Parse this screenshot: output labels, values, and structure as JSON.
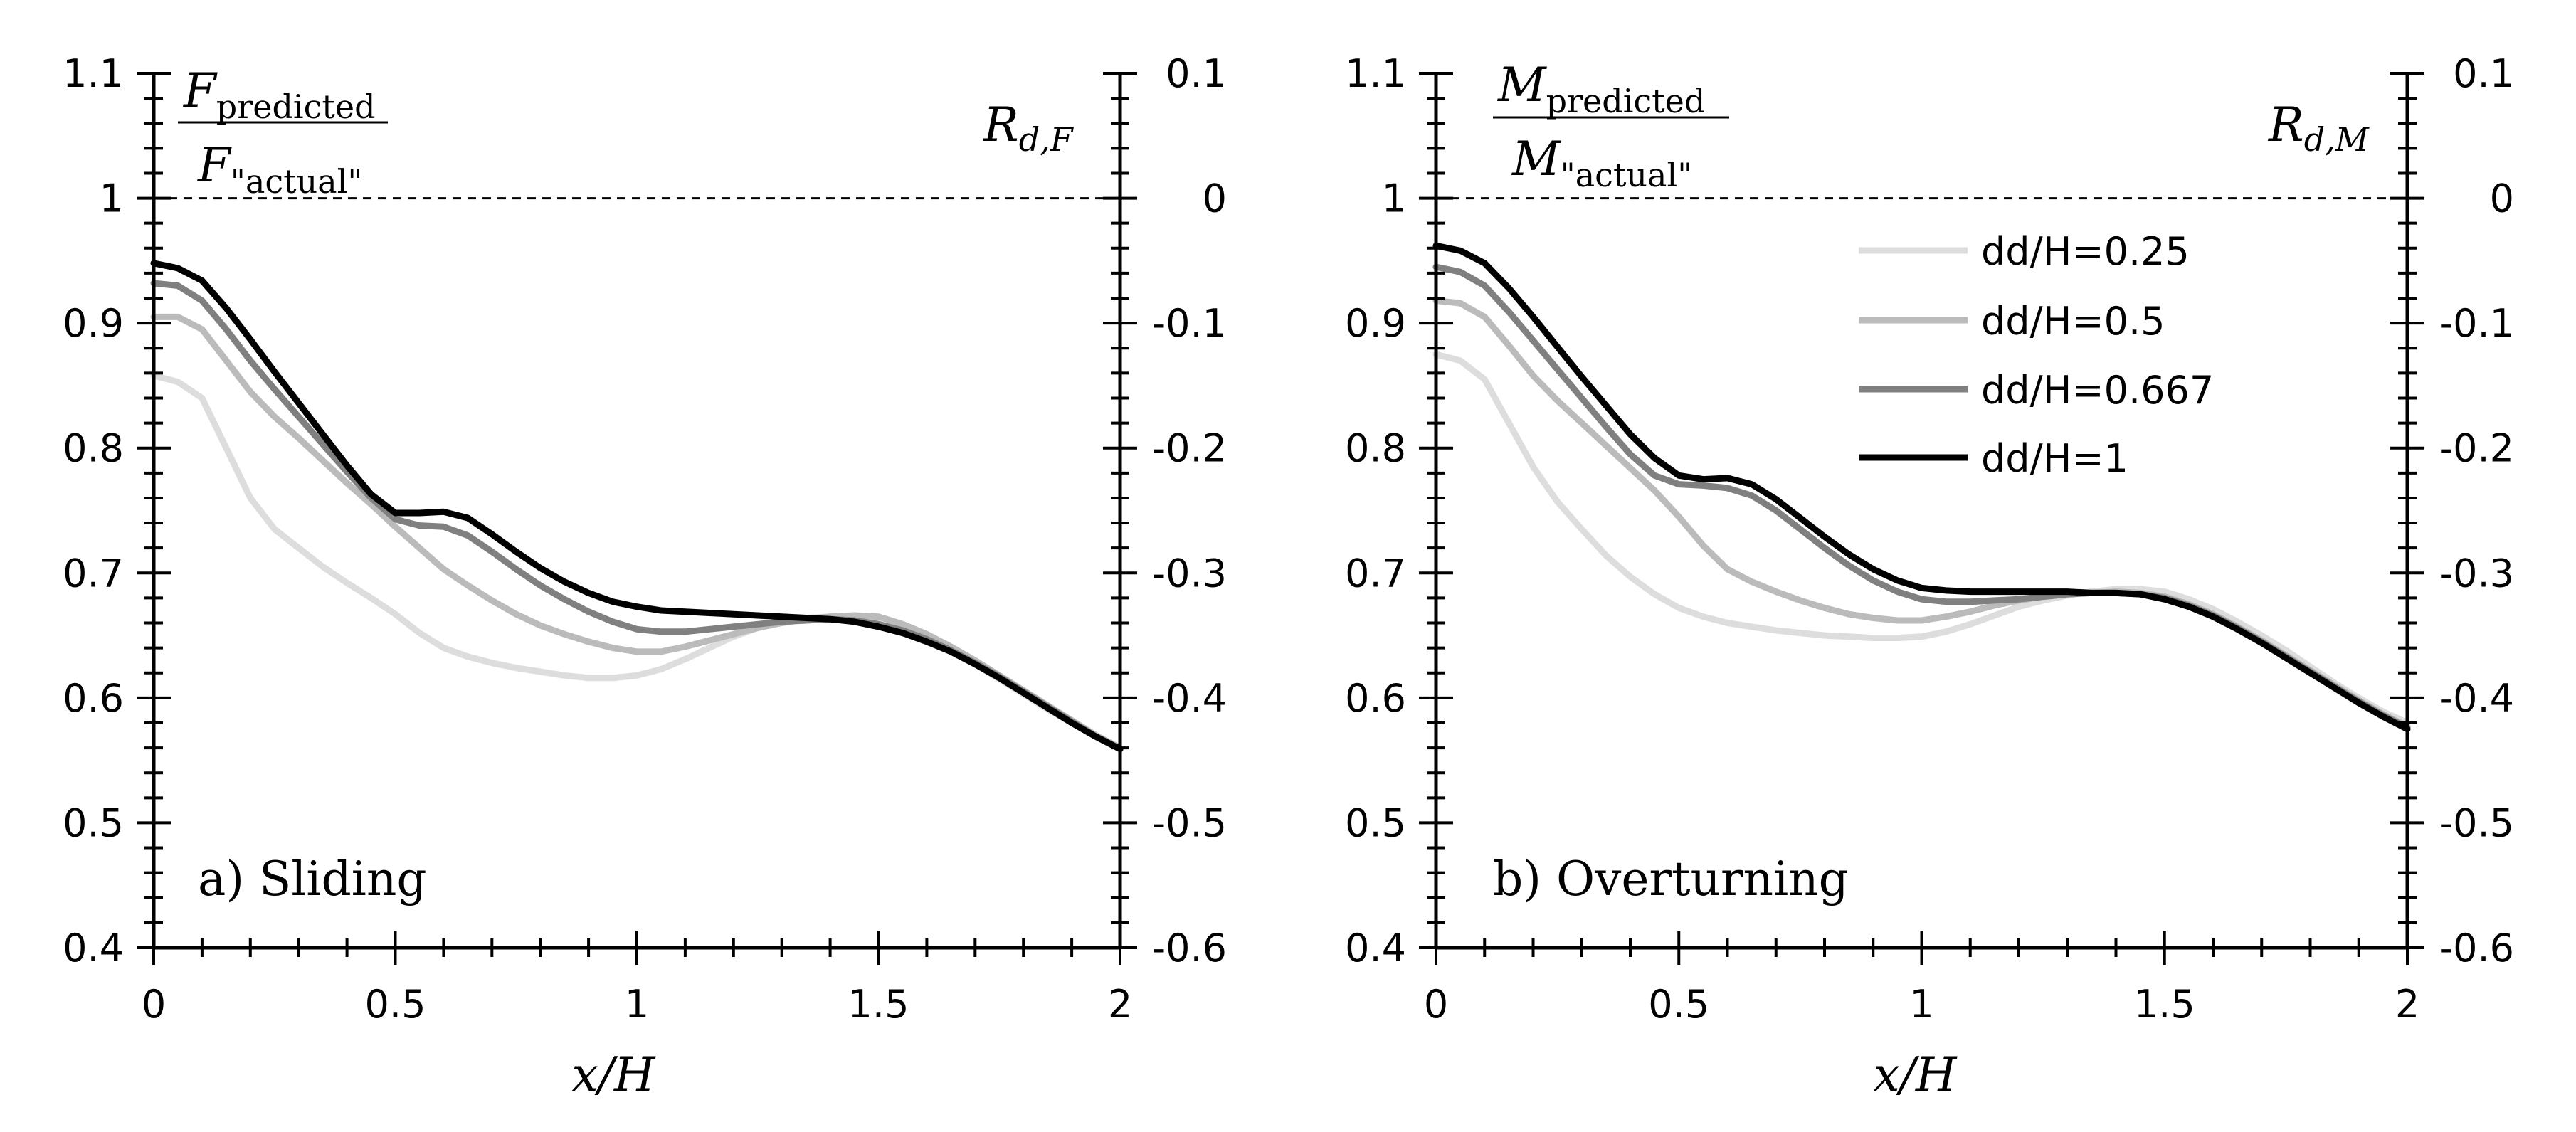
{
  "chart_data": [
    {
      "type": "line",
      "panel_label": "a) Sliding",
      "left_ylabel": {
        "main": "F",
        "num_sub": "predicted",
        "den_sub": "\"actual\""
      },
      "right_ylabel": {
        "main": "R",
        "sub": "d,F"
      },
      "xlabel": "x/H",
      "xlim": [
        0,
        2
      ],
      "ylim": [
        0.4,
        1.1
      ],
      "y2lim": [
        -0.6,
        0.1
      ],
      "xticks": [
        "0",
        "0.5",
        "1",
        "1.5",
        "2"
      ],
      "yticks": [
        "0.4",
        "0.5",
        "0.6",
        "0.7",
        "0.8",
        "0.9",
        "1",
        "1.1"
      ],
      "y2ticks": [
        "-0.6",
        "-0.5",
        "-0.4",
        "-0.3",
        "-0.2",
        "-0.1",
        "0",
        "0.1"
      ],
      "reference_line": 1.0,
      "series": [
        {
          "name": "dd/H=0.25",
          "color": "#dddddd",
          "x": [
            0,
            0.05,
            0.1,
            0.15,
            0.2,
            0.25,
            0.3,
            0.35,
            0.4,
            0.45,
            0.5,
            0.55,
            0.6,
            0.65,
            0.7,
            0.75,
            0.8,
            0.85,
            0.9,
            0.95,
            1.0,
            1.05,
            1.1,
            1.15,
            1.2,
            1.25,
            1.3,
            1.35,
            1.4,
            1.45,
            1.5,
            1.55,
            1.6,
            1.65,
            1.7,
            1.75,
            1.8,
            1.85,
            1.9,
            1.95,
            2.0
          ],
          "y": [
            0.858,
            0.853,
            0.84,
            0.8,
            0.76,
            0.735,
            0.72,
            0.705,
            0.692,
            0.68,
            0.667,
            0.652,
            0.64,
            0.633,
            0.628,
            0.624,
            0.621,
            0.618,
            0.616,
            0.616,
            0.618,
            0.623,
            0.631,
            0.64,
            0.649,
            0.656,
            0.661,
            0.664,
            0.665,
            0.665,
            0.662,
            0.656,
            0.648,
            0.638,
            0.627,
            0.615,
            0.603,
            0.591,
            0.58,
            0.569,
            0.559
          ]
        },
        {
          "name": "dd/H=0.5",
          "color": "#bbbbbb",
          "x": [
            0,
            0.05,
            0.1,
            0.15,
            0.2,
            0.25,
            0.3,
            0.35,
            0.4,
            0.45,
            0.5,
            0.55,
            0.6,
            0.65,
            0.7,
            0.75,
            0.8,
            0.85,
            0.9,
            0.95,
            1.0,
            1.05,
            1.1,
            1.15,
            1.2,
            1.25,
            1.3,
            1.35,
            1.4,
            1.45,
            1.5,
            1.55,
            1.6,
            1.65,
            1.7,
            1.75,
            1.8,
            1.85,
            1.9,
            1.95,
            2.0
          ],
          "y": [
            0.905,
            0.905,
            0.895,
            0.87,
            0.845,
            0.825,
            0.808,
            0.79,
            0.772,
            0.755,
            0.737,
            0.72,
            0.703,
            0.69,
            0.678,
            0.667,
            0.658,
            0.651,
            0.645,
            0.64,
            0.637,
            0.637,
            0.641,
            0.646,
            0.651,
            0.656,
            0.66,
            0.663,
            0.665,
            0.666,
            0.665,
            0.659,
            0.651,
            0.641,
            0.63,
            0.618,
            0.606,
            0.594,
            0.582,
            0.57,
            0.56
          ]
        },
        {
          "name": "dd/H=0.667",
          "color": "#808080",
          "x": [
            0,
            0.05,
            0.1,
            0.15,
            0.2,
            0.25,
            0.3,
            0.35,
            0.4,
            0.45,
            0.5,
            0.55,
            0.6,
            0.65,
            0.7,
            0.75,
            0.8,
            0.85,
            0.9,
            0.95,
            1.0,
            1.05,
            1.1,
            1.15,
            1.2,
            1.25,
            1.3,
            1.35,
            1.4,
            1.45,
            1.5,
            1.55,
            1.6,
            1.65,
            1.7,
            1.75,
            1.8,
            1.85,
            1.9,
            1.95,
            2.0
          ],
          "y": [
            0.932,
            0.93,
            0.918,
            0.895,
            0.87,
            0.847,
            0.825,
            0.803,
            0.781,
            0.76,
            0.743,
            0.738,
            0.737,
            0.73,
            0.717,
            0.703,
            0.69,
            0.679,
            0.669,
            0.661,
            0.655,
            0.653,
            0.653,
            0.655,
            0.657,
            0.659,
            0.661,
            0.662,
            0.663,
            0.662,
            0.659,
            0.654,
            0.647,
            0.638,
            0.628,
            0.617,
            0.605,
            0.593,
            0.581,
            0.569,
            0.559
          ]
        },
        {
          "name": "dd/H=1",
          "color": "#000000",
          "x": [
            0,
            0.05,
            0.1,
            0.15,
            0.2,
            0.25,
            0.3,
            0.35,
            0.4,
            0.45,
            0.5,
            0.55,
            0.6,
            0.65,
            0.7,
            0.75,
            0.8,
            0.85,
            0.9,
            0.95,
            1.0,
            1.05,
            1.1,
            1.15,
            1.2,
            1.25,
            1.3,
            1.35,
            1.4,
            1.45,
            1.5,
            1.55,
            1.6,
            1.65,
            1.7,
            1.75,
            1.8,
            1.85,
            1.9,
            1.95,
            2.0
          ],
          "y": [
            0.948,
            0.944,
            0.934,
            0.912,
            0.887,
            0.861,
            0.836,
            0.811,
            0.786,
            0.763,
            0.748,
            0.748,
            0.749,
            0.744,
            0.731,
            0.717,
            0.704,
            0.693,
            0.684,
            0.677,
            0.673,
            0.67,
            0.669,
            0.668,
            0.667,
            0.666,
            0.665,
            0.664,
            0.663,
            0.661,
            0.657,
            0.652,
            0.645,
            0.637,
            0.627,
            0.616,
            0.604,
            0.592,
            0.58,
            0.569,
            0.559
          ]
        }
      ]
    },
    {
      "type": "line",
      "panel_label": "b) Overturning",
      "left_ylabel": {
        "main": "M",
        "num_sub": "predicted",
        "den_sub": "\"actual\""
      },
      "right_ylabel": {
        "main": "R",
        "sub": "d,M"
      },
      "xlabel": "x/H",
      "xlim": [
        0,
        2
      ],
      "ylim": [
        0.4,
        1.1
      ],
      "y2lim": [
        -0.6,
        0.1
      ],
      "xticks": [
        "0",
        "0.5",
        "1",
        "1.5",
        "2"
      ],
      "yticks": [
        "0.4",
        "0.5",
        "0.6",
        "0.7",
        "0.8",
        "0.9",
        "1",
        "1.1"
      ],
      "y2ticks": [
        "-0.6",
        "-0.5",
        "-0.4",
        "-0.3",
        "-0.2",
        "-0.1",
        "0",
        "0.1"
      ],
      "reference_line": 1.0,
      "legend_position": "upper-right",
      "series": [
        {
          "name": "dd/H=0.25",
          "color": "#dddddd",
          "x": [
            0,
            0.05,
            0.1,
            0.15,
            0.2,
            0.25,
            0.3,
            0.35,
            0.4,
            0.45,
            0.5,
            0.55,
            0.6,
            0.65,
            0.7,
            0.75,
            0.8,
            0.85,
            0.9,
            0.95,
            1.0,
            1.05,
            1.1,
            1.15,
            1.2,
            1.25,
            1.3,
            1.35,
            1.4,
            1.45,
            1.5,
            1.55,
            1.6,
            1.65,
            1.7,
            1.75,
            1.8,
            1.85,
            1.9,
            1.95,
            2.0
          ],
          "y": [
            0.875,
            0.87,
            0.855,
            0.82,
            0.785,
            0.757,
            0.735,
            0.714,
            0.697,
            0.683,
            0.672,
            0.665,
            0.66,
            0.657,
            0.654,
            0.652,
            0.65,
            0.649,
            0.648,
            0.648,
            0.649,
            0.653,
            0.659,
            0.666,
            0.673,
            0.678,
            0.682,
            0.685,
            0.687,
            0.687,
            0.685,
            0.679,
            0.671,
            0.661,
            0.65,
            0.638,
            0.625,
            0.612,
            0.6,
            0.589,
            0.58
          ]
        },
        {
          "name": "dd/H=0.5",
          "color": "#bbbbbb",
          "x": [
            0,
            0.05,
            0.1,
            0.15,
            0.2,
            0.25,
            0.3,
            0.35,
            0.4,
            0.45,
            0.5,
            0.55,
            0.6,
            0.65,
            0.7,
            0.75,
            0.8,
            0.85,
            0.9,
            0.95,
            1.0,
            1.05,
            1.1,
            1.15,
            1.2,
            1.25,
            1.3,
            1.35,
            1.4,
            1.45,
            1.5,
            1.55,
            1.6,
            1.65,
            1.7,
            1.75,
            1.8,
            1.85,
            1.9,
            1.95,
            2.0
          ],
          "y": [
            0.918,
            0.916,
            0.905,
            0.882,
            0.858,
            0.838,
            0.82,
            0.802,
            0.784,
            0.766,
            0.745,
            0.722,
            0.703,
            0.693,
            0.685,
            0.678,
            0.672,
            0.667,
            0.664,
            0.662,
            0.662,
            0.665,
            0.669,
            0.674,
            0.678,
            0.681,
            0.683,
            0.684,
            0.685,
            0.684,
            0.681,
            0.675,
            0.667,
            0.657,
            0.646,
            0.634,
            0.622,
            0.61,
            0.598,
            0.587,
            0.577
          ]
        },
        {
          "name": "dd/H=0.667",
          "color": "#808080",
          "x": [
            0,
            0.05,
            0.1,
            0.15,
            0.2,
            0.25,
            0.3,
            0.35,
            0.4,
            0.45,
            0.5,
            0.55,
            0.6,
            0.65,
            0.7,
            0.75,
            0.8,
            0.85,
            0.9,
            0.95,
            1.0,
            1.05,
            1.1,
            1.15,
            1.2,
            1.25,
            1.3,
            1.35,
            1.4,
            1.45,
            1.5,
            1.55,
            1.6,
            1.65,
            1.7,
            1.75,
            1.8,
            1.85,
            1.9,
            1.95,
            2.0
          ],
          "y": [
            0.945,
            0.941,
            0.93,
            0.909,
            0.886,
            0.863,
            0.84,
            0.817,
            0.795,
            0.778,
            0.771,
            0.77,
            0.768,
            0.762,
            0.75,
            0.735,
            0.72,
            0.706,
            0.694,
            0.685,
            0.679,
            0.677,
            0.677,
            0.678,
            0.679,
            0.681,
            0.683,
            0.684,
            0.684,
            0.683,
            0.68,
            0.674,
            0.666,
            0.656,
            0.645,
            0.633,
            0.621,
            0.609,
            0.597,
            0.586,
            0.576
          ]
        },
        {
          "name": "dd/H=1",
          "color": "#000000",
          "x": [
            0,
            0.05,
            0.1,
            0.15,
            0.2,
            0.25,
            0.3,
            0.35,
            0.4,
            0.45,
            0.5,
            0.55,
            0.6,
            0.65,
            0.7,
            0.75,
            0.8,
            0.85,
            0.9,
            0.95,
            1.0,
            1.05,
            1.1,
            1.15,
            1.2,
            1.25,
            1.3,
            1.35,
            1.4,
            1.45,
            1.5,
            1.55,
            1.6,
            1.65,
            1.7,
            1.75,
            1.8,
            1.85,
            1.9,
            1.95,
            2.0
          ],
          "y": [
            0.962,
            0.958,
            0.948,
            0.928,
            0.905,
            0.881,
            0.857,
            0.834,
            0.811,
            0.792,
            0.778,
            0.775,
            0.776,
            0.771,
            0.759,
            0.744,
            0.729,
            0.715,
            0.703,
            0.694,
            0.688,
            0.686,
            0.685,
            0.685,
            0.685,
            0.685,
            0.685,
            0.684,
            0.684,
            0.683,
            0.679,
            0.673,
            0.665,
            0.655,
            0.644,
            0.632,
            0.62,
            0.608,
            0.596,
            0.585,
            0.575
          ]
        }
      ]
    }
  ]
}
